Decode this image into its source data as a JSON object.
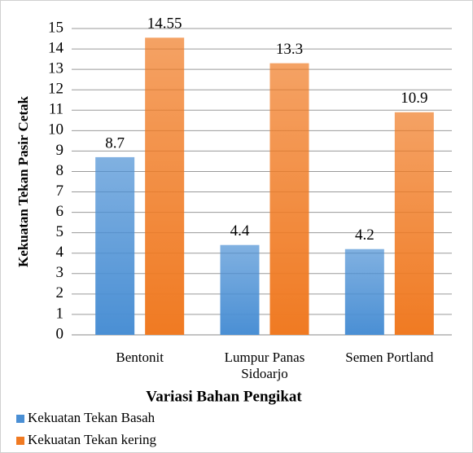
{
  "chart_data": {
    "type": "bar",
    "categories": [
      "Bentonit",
      "Lumpur Panas Sidoarjo",
      "Semen Portland"
    ],
    "series": [
      {
        "name": "Kekuatan Tekan Basah",
        "color": "#4a8fd4",
        "values": [
          8.7,
          4.4,
          4.2
        ]
      },
      {
        "name": "Kekuatan Tekan kering",
        "color": "#f07a22",
        "values": [
          14.55,
          13.3,
          10.9
        ]
      }
    ],
    "ylabel": "Kekuatan Tekan Pasir Cetak",
    "xlabel": "Variasi Bahan Pengikat",
    "ylim": [
      0,
      15
    ],
    "yticks": [
      0,
      1,
      2,
      3,
      4,
      5,
      6,
      7,
      8,
      9,
      10,
      11,
      12,
      13,
      14,
      15
    ],
    "grid": true,
    "legend": "bottom-left"
  }
}
